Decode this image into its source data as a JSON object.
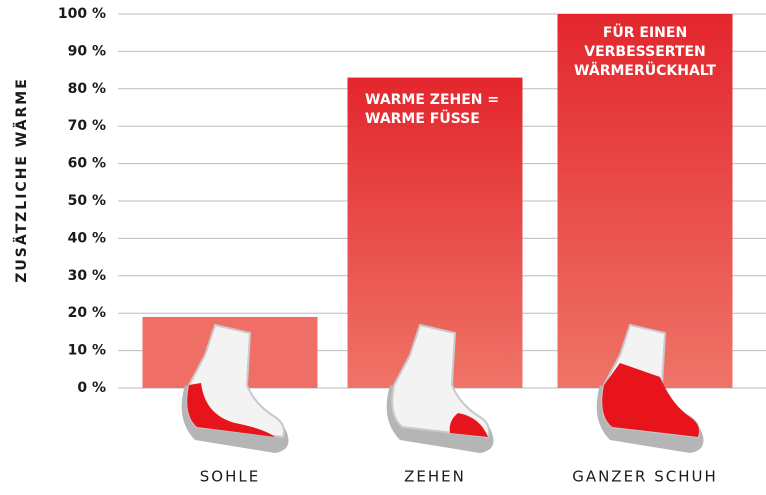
{
  "chart_data": {
    "type": "bar",
    "y_label": "ZUSÄTZLICHE WÄRME",
    "categories": [
      "SOHLE",
      "ZEHEN",
      "GANZER SCHUH"
    ],
    "values": [
      19,
      83,
      100
    ],
    "color": "#e3262d",
    "ylim": [
      0,
      100
    ],
    "yticks": [
      {
        "value": 0,
        "label": "0 %"
      },
      {
        "value": 10,
        "label": "10 %"
      },
      {
        "value": 20,
        "label": "20 %"
      },
      {
        "value": 30,
        "label": "30 %"
      },
      {
        "value": 40,
        "label": "40 %"
      },
      {
        "value": 50,
        "label": "50 %"
      },
      {
        "value": 60,
        "label": "60 %"
      },
      {
        "value": 70,
        "label": "70 %"
      },
      {
        "value": 80,
        "label": "80 %"
      },
      {
        "value": 90,
        "label": "90 %"
      },
      {
        "value": 100,
        "label": "100 %"
      }
    ],
    "grid": true,
    "annotations": [
      {
        "lines": [
          "WARME ZEHEN =",
          "WARME FÜSSE"
        ]
      },
      {
        "lines": [
          "FÜR EINEN",
          "VERBESSERTEN",
          "WÄRMERÜCKHALT"
        ]
      }
    ]
  }
}
